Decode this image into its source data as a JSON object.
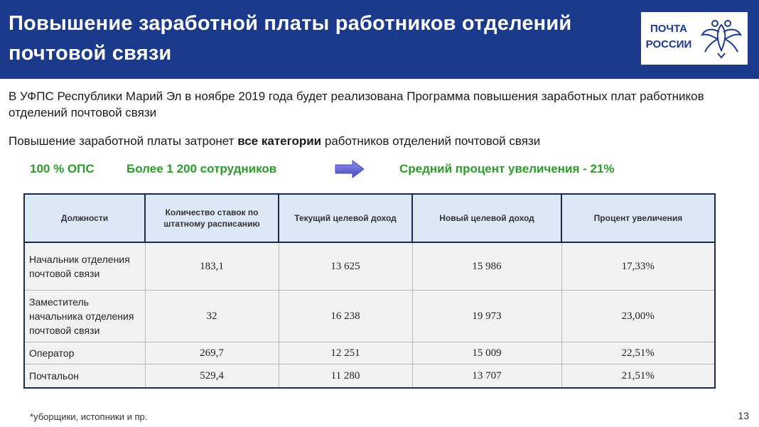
{
  "header": {
    "title": "Повышение заработной платы работников отделений почтовой связи",
    "logo": {
      "line1": "ПОЧТА",
      "line2": "РОССИИ",
      "emblem_icon": "double-headed-eagle-icon"
    }
  },
  "intro": {
    "line1": "В УФПС Республики Марий Эл в ноябре 2019 года будет реализована Программа повышения заработных плат работников отделений почтовой связи",
    "line2_before": "Повышение заработной платы затронет ",
    "line2_bold": "все категории",
    "line2_after": " работников отделений почтовой связи"
  },
  "highlights": {
    "ops": "100 % ОПС",
    "employees": "Более 1 200  сотрудников",
    "arrow_icon": "right-arrow-icon",
    "average": "Средний   процент увеличения - 21%"
  },
  "table": {
    "headers": [
      "Должности",
      "Количество ставок по штатному расписанию",
      "Текущий  целевой доход",
      "Новый целевой доход",
      "Процент увеличения"
    ],
    "rows": [
      [
        "Начальник отделения почтовой связи",
        "183,1",
        "13 625",
        "15 986",
        "17,33%"
      ],
      [
        "Заместитель начальника отделения почтовой связи",
        "32",
        "16 238",
        "19 973",
        "23,00%"
      ],
      [
        "Оператор",
        "269,7",
        "12 251",
        "15 009",
        "22,51%"
      ],
      [
        "Почтальон",
        "529,4",
        "11 280",
        "13 707",
        "21,51%"
      ]
    ]
  },
  "footnote": "*уборщики, истопники и пр.",
  "page_number": "13",
  "colors": {
    "header_bg": "#1c3a8c",
    "green": "#2e9a2e",
    "table_header_bg": "#dce8f5",
    "arrow": "#6d6fd0"
  }
}
